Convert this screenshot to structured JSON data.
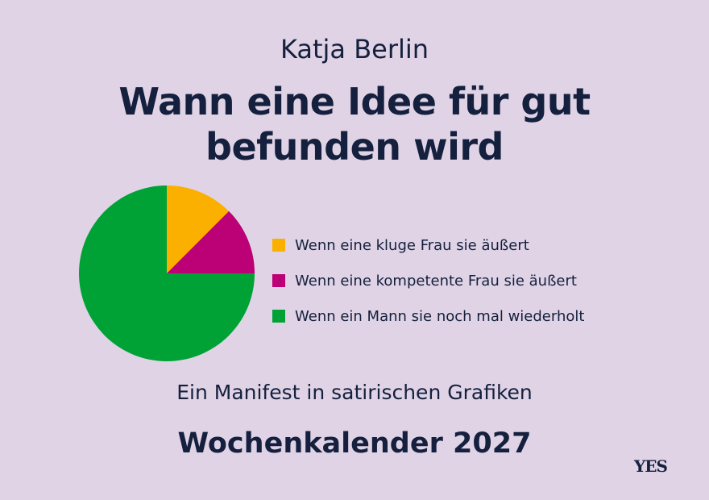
{
  "author": "Katja Berlin",
  "title_line1": "Wann eine Idee für gut",
  "title_line2": "befunden wird",
  "subtitle": "Ein Manifest in satirischen Grafiken",
  "product": "Wochenkalender 2027",
  "publisher_logo": "YES",
  "chart_data": {
    "type": "pie",
    "title": "",
    "start_angle": "12 o'clock, clockwise",
    "slices": [
      {
        "label": "Wenn eine kluge Frau sie äußert",
        "value": 12.5,
        "color": "#fbb000"
      },
      {
        "label": "Wenn eine kompetente Frau sie äußert",
        "value": 12.5,
        "color": "#bc0075"
      },
      {
        "label": "Wenn ein Mann sie noch mal wiederholt",
        "value": 75,
        "color": "#00a236"
      }
    ],
    "legend_position": "right"
  }
}
